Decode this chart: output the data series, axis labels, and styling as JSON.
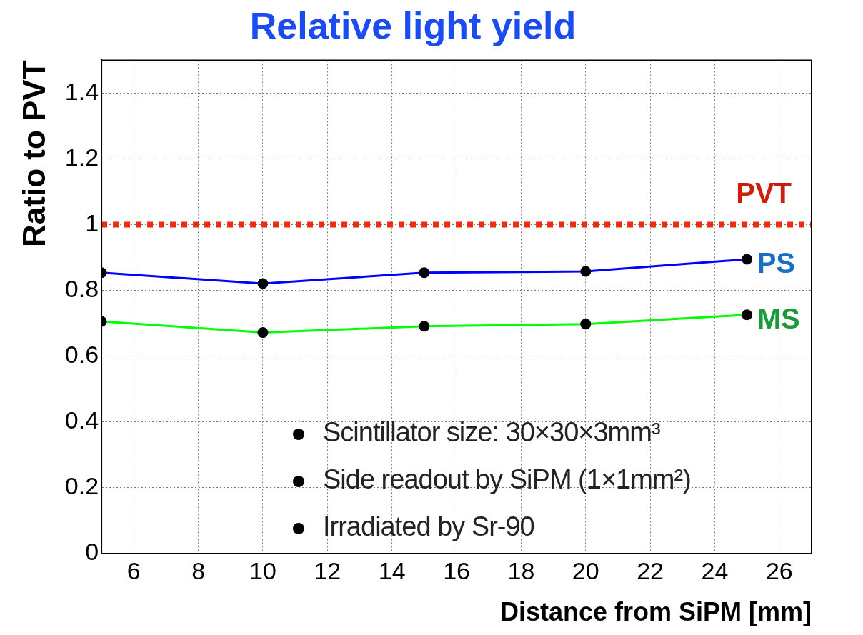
{
  "chart_data": {
    "type": "line",
    "title": "Relative light yield",
    "xlabel": "Distance from SiPM [mm]",
    "ylabel": "Ratio to PVT",
    "x": [
      5,
      10,
      15,
      20,
      25
    ],
    "series": [
      {
        "name": "PS",
        "color": "#0000ff",
        "values": [
          0.854,
          0.821,
          0.854,
          0.858,
          0.895
        ]
      },
      {
        "name": "MS",
        "color": "#00ff00",
        "values": [
          0.706,
          0.672,
          0.691,
          0.698,
          0.726
        ]
      }
    ],
    "xlim": [
      5,
      27
    ],
    "xticks": [
      6,
      8,
      10,
      12,
      14,
      16,
      18,
      20,
      22,
      24,
      26
    ],
    "ylim": [
      0,
      1.5
    ],
    "yticks": [
      0,
      0.2,
      0.4,
      0.6,
      0.8,
      1,
      1.2,
      1.4
    ],
    "ref_lines": [
      {
        "axis": "y",
        "value": 1,
        "label": "PVT",
        "color": "#ee2a10",
        "line_style": "dotted"
      }
    ],
    "annotations": [
      "Scintillator size: 30×30×3mm³",
      "Side readout by SiPM (1×1mm²)",
      "Irradiated by Sr-90"
    ],
    "grid": true,
    "marker": "circle",
    "line_style": "solid",
    "legend": false
  }
}
